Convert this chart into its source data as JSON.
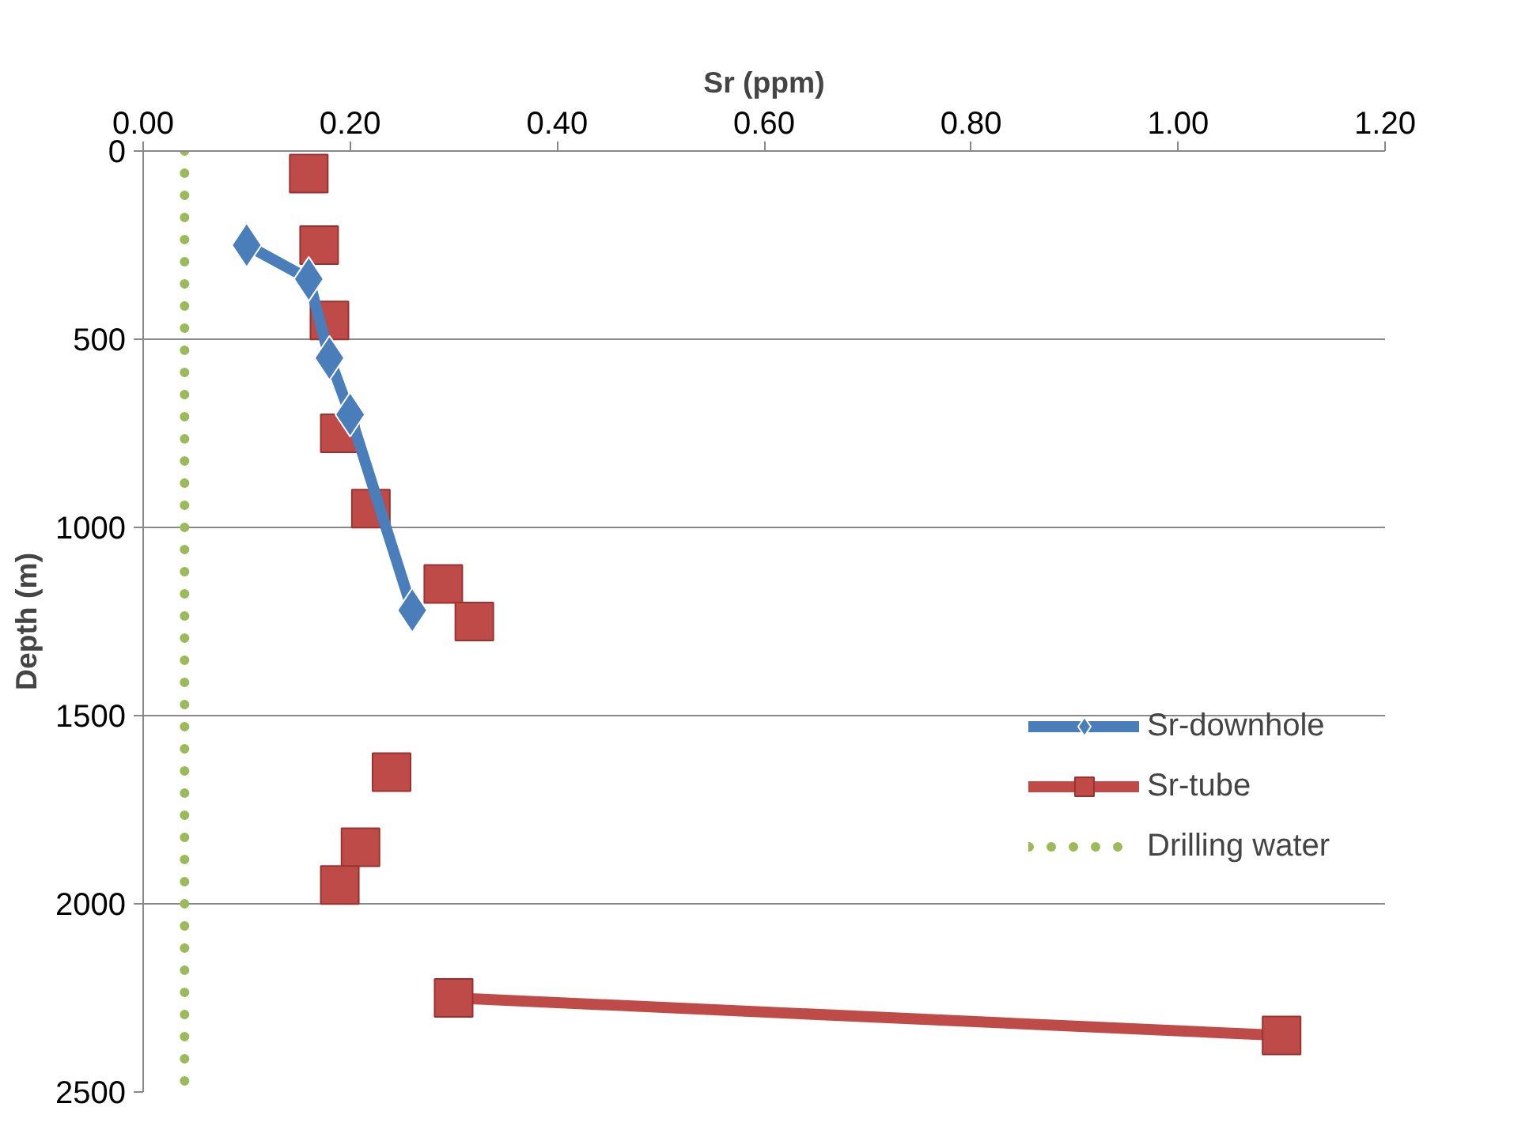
{
  "chart_data": {
    "type": "line",
    "xlabel": "Sr (ppm)",
    "ylabel": "Depth (m)",
    "xlim": [
      0,
      1.2
    ],
    "xticks": [
      {
        "value": 0,
        "label": "0.00"
      },
      {
        "value": 0.2,
        "label": "0.20"
      },
      {
        "value": 0.4,
        "label": "0.40"
      },
      {
        "value": 0.6,
        "label": "0.60"
      },
      {
        "value": 0.8,
        "label": "0.80"
      },
      {
        "value": 1.0,
        "label": "1.00"
      },
      {
        "value": 1.2,
        "label": "1.20"
      }
    ],
    "ylim": [
      2500,
      0
    ],
    "yticks": [
      0,
      500,
      1000,
      1500,
      2000,
      2500
    ],
    "grid": "y",
    "legend": "right",
    "series": [
      {
        "name": "Sr-downhole",
        "color": "#4a7ebb",
        "marker": "diamond",
        "line_style": "solid",
        "x": [
          0.1,
          0.16,
          0.18,
          0.2,
          0.26
        ],
        "values": [
          250,
          340,
          550,
          700,
          1220
        ]
      },
      {
        "name": "Sr-tube",
        "color": "#be4b48",
        "marker": "square",
        "line_style": "solid",
        "x": [
          0.16,
          null,
          0.17,
          null,
          0.18,
          null,
          0.19,
          null,
          0.22,
          null,
          0.29,
          null,
          0.32,
          null,
          0.24,
          null,
          0.21,
          null,
          0.19,
          null,
          0.3,
          1.1
        ],
        "values": [
          60,
          null,
          250,
          null,
          450,
          null,
          750,
          null,
          950,
          null,
          1150,
          null,
          1250,
          null,
          1650,
          null,
          1850,
          null,
          1950,
          null,
          2250,
          2350
        ]
      },
      {
        "name": "Drilling water",
        "color": "#9bbb59",
        "marker": "none",
        "line_style": "dotted",
        "x": [
          0.04,
          0.04
        ],
        "values": [
          0,
          2480
        ]
      }
    ]
  }
}
